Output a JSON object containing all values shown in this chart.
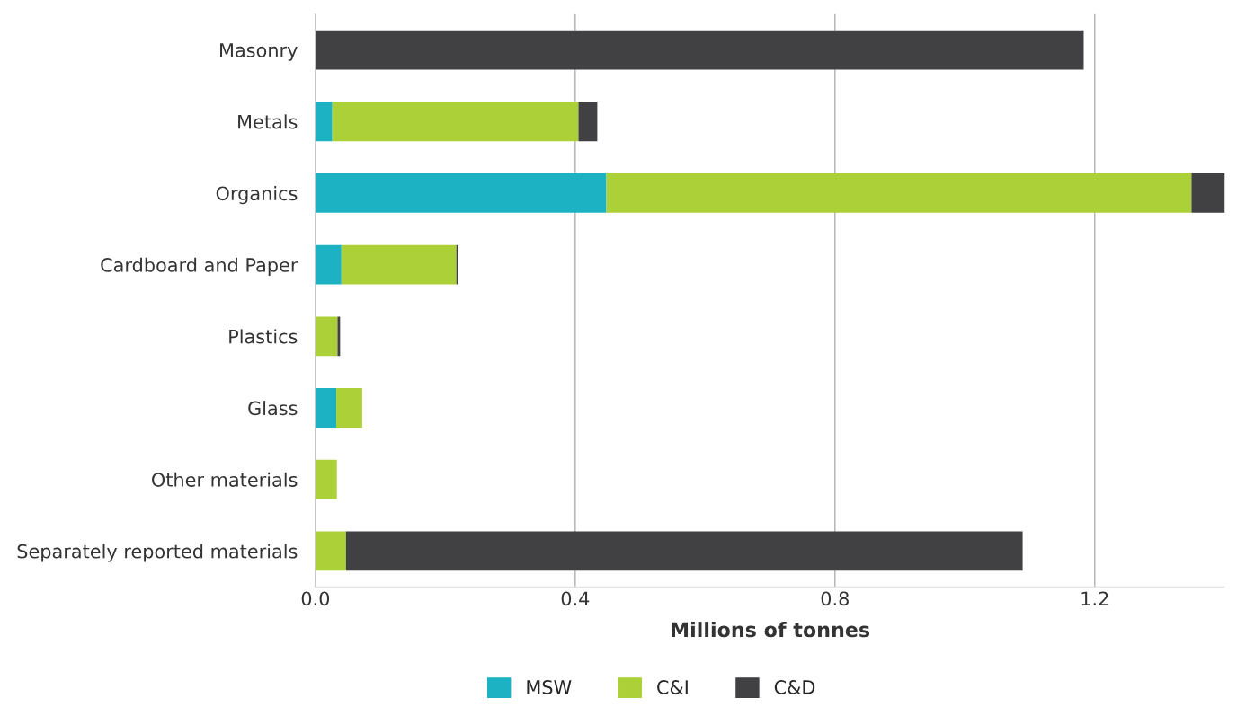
{
  "chart_data": {
    "type": "bar",
    "orientation": "horizontal",
    "stacked": true,
    "categories": [
      "Masonry",
      "Metals",
      "Organics",
      "Cardboard and Paper",
      "Plastics",
      "Glass",
      "Other materials",
      "Separately reported materials"
    ],
    "series": [
      {
        "name": "MSW",
        "color": "#1cb2c4",
        "values": [
          0,
          0.026,
          0.448,
          0.04,
          null,
          0.032,
          0,
          0
        ]
      },
      {
        "name": "C&I",
        "color": "#acd037",
        "values": [
          0,
          0.379,
          0.901,
          0.177,
          0.034,
          0.04,
          0.033,
          0.047
        ]
      },
      {
        "name": "C&D",
        "color": "#414042",
        "values": [
          1.183,
          0.029,
          0.053,
          0.003,
          0.004,
          0,
          0,
          1.042
        ]
      }
    ],
    "xlabel": "Millions of tonnes",
    "xlim": [
      0,
      1.4
    ],
    "xticks": [
      {
        "value": 0,
        "label": "0.0"
      },
      0.4,
      0.8,
      1.2
    ],
    "grid": "x",
    "legend": "bottom"
  }
}
